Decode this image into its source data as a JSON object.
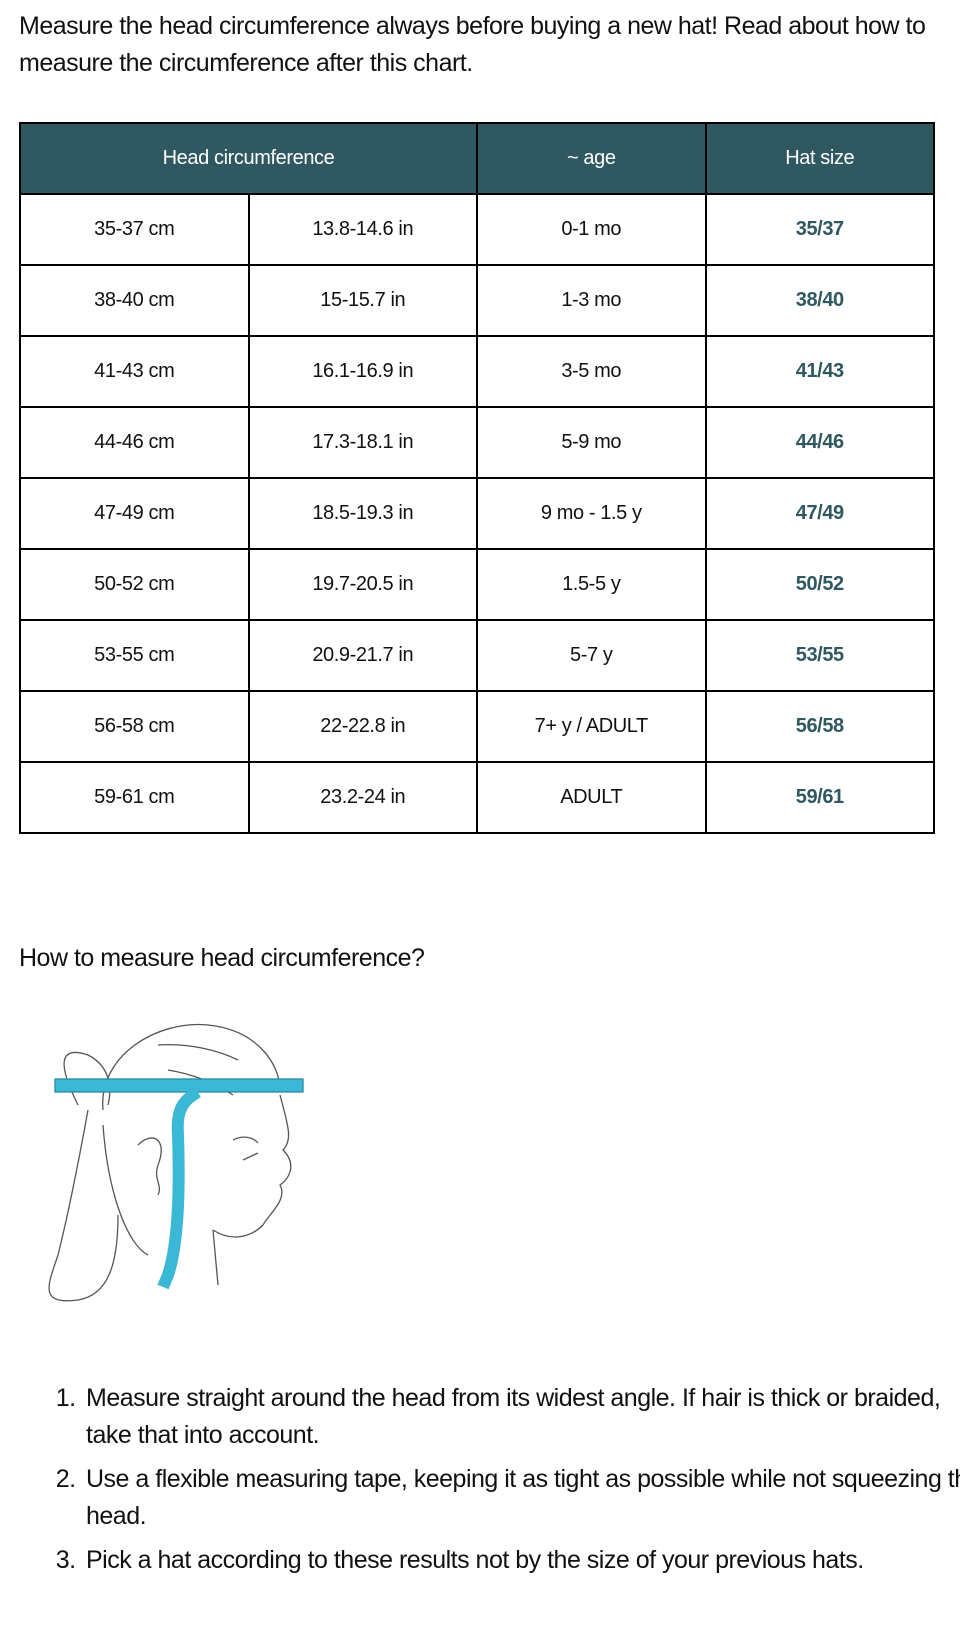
{
  "intro": "Measure the head circumference always before buying a new hat! Read about how to measure the circumference after this chart.",
  "table": {
    "headers": [
      "Head circumference",
      "~ age",
      "Hat size"
    ],
    "header_color": "#2f5860",
    "rows": [
      [
        "35-37 cm",
        "13.8-14.6 in",
        "0-1 mo",
        "35/37"
      ],
      [
        "38-40 cm",
        "15-15.7 in",
        "1-3 mo",
        "38/40"
      ],
      [
        "41-43 cm",
        "16.1-16.9 in",
        "3-5 mo",
        "41/43"
      ],
      [
        "44-46 cm",
        "17.3-18.1 in",
        "5-9 mo",
        "44/46"
      ],
      [
        "47-49 cm",
        "18.5-19.3 in",
        "9 mo - 1.5 y",
        "47/49"
      ],
      [
        "50-52 cm",
        "19.7-20.5 in",
        "1.5-5 y",
        "50/52"
      ],
      [
        "53-55 cm",
        "20.9-21.7 in",
        "5-7 y",
        "53/55"
      ],
      [
        "56-58 cm",
        "22-22.8 in",
        "7+ y / ADULT",
        "56/58"
      ],
      [
        "59-61 cm",
        "23.2-24 in",
        "ADULT",
        "59/61"
      ]
    ]
  },
  "howto_title": "How to measure head circumference?",
  "illustration": {
    "icon": "head-measuring-tape-illustration",
    "tape_color": "#3bb8d6"
  },
  "steps": [
    "Measure straight around the head from its widest angle. If hair is thick or braided, take that into account.",
    "Use a flexible measuring tape, keeping it as tight as possible while not squeezing the head.",
    "Pick a hat according to these results not by the size of your previous hats."
  ]
}
